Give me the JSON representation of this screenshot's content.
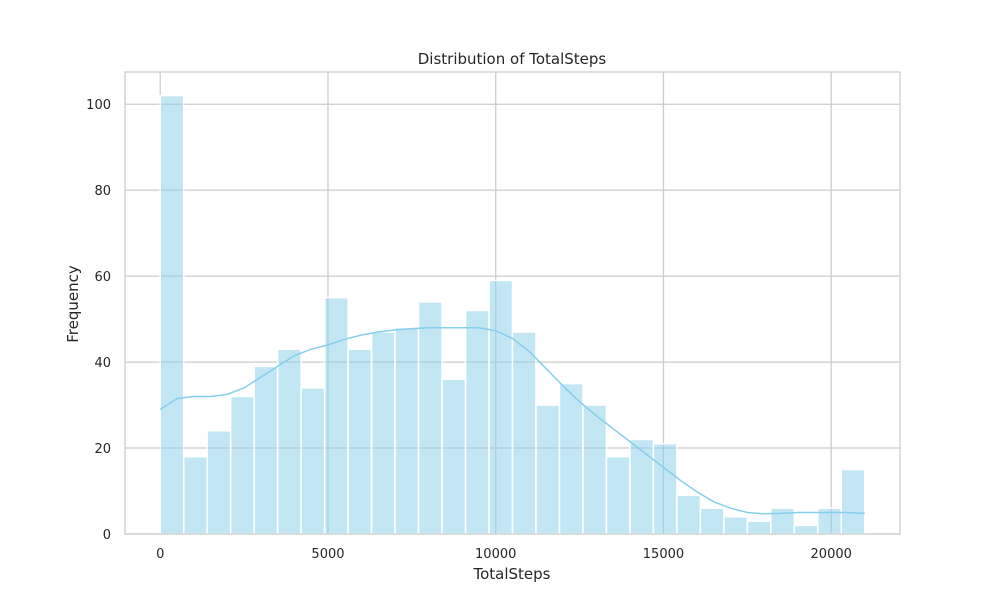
{
  "chart_data": {
    "type": "bar",
    "title": "Distribution of TotalSteps",
    "xlabel": "TotalSteps",
    "ylabel": "Frequency",
    "xlim": [
      -1050,
      22050
    ],
    "ylim": [
      0,
      107.5
    ],
    "xticks": [
      0,
      5000,
      10000,
      15000,
      20000
    ],
    "yticks": [
      0,
      20,
      40,
      60,
      80,
      100
    ],
    "grid": true,
    "bin_width": 700,
    "bins_start": [
      0,
      700,
      1400,
      2100,
      2800,
      3500,
      4200,
      4900,
      5600,
      6300,
      7000,
      7700,
      8400,
      9100,
      9800,
      10500,
      11200,
      11900,
      12600,
      13300,
      14000,
      14700,
      15400,
      16100,
      16800,
      17500,
      18200,
      18900,
      19600,
      20300
    ],
    "values": [
      102,
      18,
      24,
      32,
      39,
      43,
      34,
      55,
      43,
      47,
      48,
      54,
      36,
      52,
      59,
      47,
      30,
      35,
      30,
      18,
      22,
      21,
      9,
      6,
      4,
      3,
      6,
      2,
      6,
      15
    ],
    "kde": {
      "x": [
        0,
        500,
        1000,
        1500,
        2000,
        2500,
        3000,
        3500,
        4000,
        4500,
        5000,
        5500,
        6000,
        6500,
        7000,
        7500,
        8000,
        8500,
        9000,
        9500,
        10000,
        10500,
        11000,
        11500,
        12000,
        12500,
        13000,
        13500,
        14000,
        14500,
        15000,
        15500,
        16000,
        16500,
        17000,
        17500,
        18000,
        18500,
        19000,
        19500,
        20000,
        20500,
        21000
      ],
      "y": [
        29,
        31.5,
        32,
        32,
        32.5,
        34,
        36.5,
        39,
        41.5,
        43,
        44,
        45.3,
        46.3,
        47,
        47.5,
        47.8,
        48,
        48,
        48,
        48,
        47.3,
        45.5,
        42.5,
        38.5,
        34.5,
        30.8,
        27.5,
        24.5,
        21.5,
        18.5,
        15.5,
        12.5,
        9.8,
        7.5,
        6,
        5,
        4.7,
        4.8,
        5,
        5,
        5,
        5,
        4.8
      ]
    },
    "colors": {
      "bar_fill": "#87ceeb",
      "bar_fill_opacity": 0.5,
      "bar_edge": "#ffffff",
      "kde_line": "#87ceeb",
      "grid": "#cccccc",
      "frame": "#cccccc",
      "text": "#262626"
    }
  }
}
